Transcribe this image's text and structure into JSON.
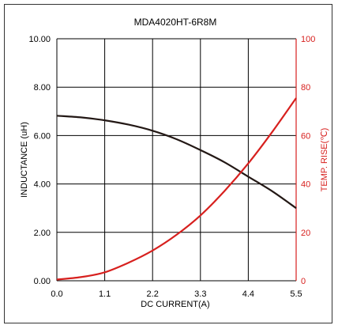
{
  "chart_data": {
    "type": "line",
    "title": "MDA4020HT-6R8M",
    "xlabel": "DC CURRENT(A)",
    "ylabel_left": "INDUCTANCE (uH)",
    "ylabel_right": "TEMP. RISE(℃)",
    "xlim": [
      0,
      5.5
    ],
    "ylim_left": [
      0,
      10
    ],
    "ylim_right": [
      0,
      100
    ],
    "x_ticks": [
      "0.0",
      "1.1",
      "2.2",
      "3.3",
      "4.4",
      "5.5"
    ],
    "y_left_ticks": [
      "0.00",
      "2.00",
      "4.00",
      "6.00",
      "8.00",
      "10.00"
    ],
    "y_right_ticks": [
      "0",
      "20",
      "40",
      "60",
      "80",
      "100"
    ],
    "grid": true,
    "series": [
      {
        "axis": "left",
        "color": "#231815",
        "x": [
          0,
          0.55,
          1.1,
          1.65,
          2.2,
          2.75,
          3.3,
          3.85,
          4.4,
          4.95,
          5.5
        ],
        "y": [
          6.82,
          6.75,
          6.63,
          6.45,
          6.2,
          5.85,
          5.4,
          4.9,
          4.3,
          3.7,
          3.0
        ]
      },
      {
        "axis": "right",
        "color": "#d7201e",
        "x": [
          0,
          0.55,
          1.1,
          1.65,
          2.2,
          2.75,
          3.3,
          3.85,
          4.4,
          4.95,
          5.5
        ],
        "y": [
          0.5,
          1.5,
          3.5,
          7.5,
          12.5,
          19,
          27,
          37,
          48.5,
          61.5,
          75.5
        ]
      }
    ]
  },
  "colors": {
    "grid": "#000000",
    "left_axis": "#000000",
    "right_axis": "#d7201e"
  }
}
